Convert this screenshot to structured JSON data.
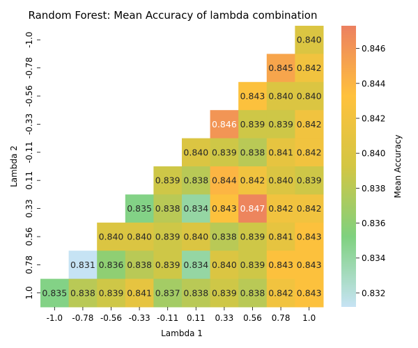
{
  "chart_data": {
    "type": "heatmap",
    "title": "Random Forest: Mean Accuracy of lambda combination",
    "xlabel": "Lambda 1",
    "ylabel": "Lambda 2",
    "x_categories": [
      "-1.0",
      "-0.78",
      "-0.56",
      "-0.33",
      "-0.11",
      "0.11",
      "0.33",
      "0.56",
      "0.78",
      "1.0"
    ],
    "y_categories": [
      "-1.0",
      "-0.78",
      "-0.56",
      "-0.33",
      "-0.11",
      "0.11",
      "0.33",
      "0.56",
      "0.78",
      "1.0"
    ],
    "values": [
      [
        null,
        null,
        null,
        null,
        null,
        null,
        null,
        null,
        null,
        0.84
      ],
      [
        null,
        null,
        null,
        null,
        null,
        null,
        null,
        null,
        0.845,
        0.842
      ],
      [
        null,
        null,
        null,
        null,
        null,
        null,
        null,
        0.843,
        0.84,
        0.84
      ],
      [
        null,
        null,
        null,
        null,
        null,
        null,
        0.846,
        0.839,
        0.839,
        0.842
      ],
      [
        null,
        null,
        null,
        null,
        null,
        0.84,
        0.839,
        0.838,
        0.841,
        0.842
      ],
      [
        null,
        null,
        null,
        null,
        0.839,
        0.838,
        0.844,
        0.842,
        0.84,
        0.839
      ],
      [
        null,
        null,
        null,
        0.835,
        0.838,
        0.834,
        0.843,
        0.847,
        0.842,
        0.842
      ],
      [
        null,
        null,
        0.84,
        0.84,
        0.839,
        0.84,
        0.838,
        0.839,
        0.841,
        0.843
      ],
      [
        null,
        0.831,
        0.836,
        0.838,
        0.839,
        0.834,
        0.84,
        0.839,
        0.843,
        0.843
      ],
      [
        0.835,
        0.838,
        0.839,
        0.841,
        0.837,
        0.838,
        0.839,
        0.838,
        0.842,
        0.843
      ]
    ],
    "colorbar": {
      "label": "Mean Accuracy",
      "vmin": 0.8312,
      "vmax": 0.8473,
      "ticks": [
        "0.832",
        "0.834",
        "0.836",
        "0.838",
        "0.840",
        "0.842",
        "0.844",
        "0.846"
      ],
      "colors": [
        "#c6e3f4",
        "#7fd17f",
        "#d3c643",
        "#ffc13d",
        "#ec8060"
      ]
    }
  }
}
